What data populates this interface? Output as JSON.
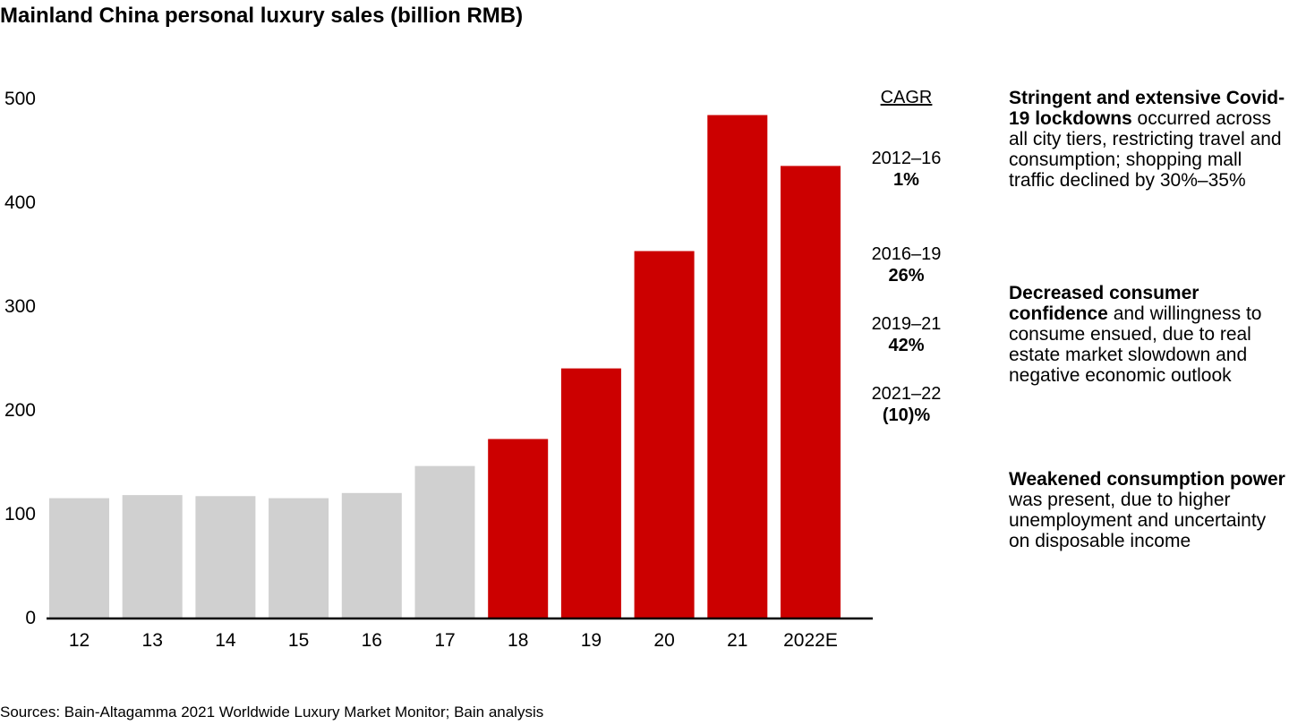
{
  "chart_data": {
    "type": "bar",
    "title": "Mainland China personal luxury sales (billion RMB)",
    "categories": [
      "12",
      "13",
      "14",
      "15",
      "16",
      "17",
      "18",
      "19",
      "20",
      "21",
      "2022E"
    ],
    "values": [
      115,
      118,
      117,
      115,
      120,
      146,
      172,
      240,
      353,
      484,
      435
    ],
    "colors": [
      "#d0d0d0",
      "#d0d0d0",
      "#d0d0d0",
      "#d0d0d0",
      "#d0d0d0",
      "#d0d0d0",
      "#cc0000",
      "#cc0000",
      "#cc0000",
      "#cc0000",
      "#cc0000"
    ],
    "ylim": [
      0,
      500
    ],
    "yticks": [
      0,
      100,
      200,
      300,
      400,
      500
    ],
    "grid": false
  },
  "cagr": {
    "heading": "CAGR",
    "items": [
      {
        "period": "2012–16",
        "value": "1%"
      },
      {
        "period": "2016–19",
        "value": "26%"
      },
      {
        "period": "2019–21",
        "value": "42%"
      },
      {
        "period": "2021–22",
        "value": "(10)%"
      }
    ]
  },
  "notes": [
    {
      "bold": "Stringent and extensive Covid-19 lockdowns",
      "text": " occurred across all city tiers, restricting travel and consumption; shopping mall traffic declined by 30%–35%"
    },
    {
      "bold": "Decreased consumer confidence",
      "text": " and willingness to consume ensued, due to real estate market slowdown and negative economic outlook"
    },
    {
      "bold": "Weakened consumption power",
      "text": " was present, due to higher unemployment and uncertainty on disposable income"
    }
  ],
  "source": "Sources: Bain-Altagamma 2021 Worldwide Luxury Market Monitor; Bain analysis"
}
